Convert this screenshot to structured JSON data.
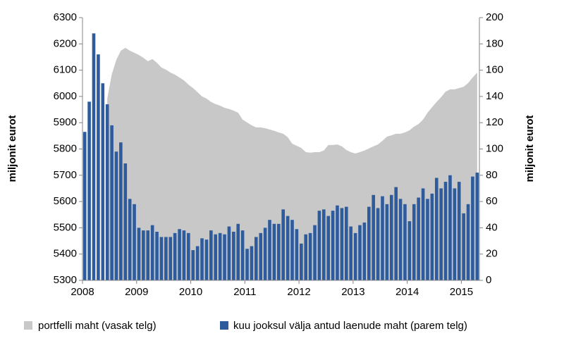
{
  "chart_data": {
    "type": "area_bar",
    "x": [
      2008.042,
      2008.125,
      2008.208,
      2008.292,
      2008.375,
      2008.458,
      2008.542,
      2008.625,
      2008.708,
      2008.792,
      2008.875,
      2008.958,
      2009.042,
      2009.125,
      2009.208,
      2009.292,
      2009.375,
      2009.458,
      2009.542,
      2009.625,
      2009.708,
      2009.792,
      2009.875,
      2009.958,
      2010.042,
      2010.125,
      2010.208,
      2010.292,
      2010.375,
      2010.458,
      2010.542,
      2010.625,
      2010.708,
      2010.792,
      2010.875,
      2010.958,
      2011.042,
      2011.125,
      2011.208,
      2011.292,
      2011.375,
      2011.458,
      2011.542,
      2011.625,
      2011.708,
      2011.792,
      2011.875,
      2011.958,
      2012.042,
      2012.125,
      2012.208,
      2012.292,
      2012.375,
      2012.458,
      2012.542,
      2012.625,
      2012.708,
      2012.792,
      2012.875,
      2012.958,
      2013.042,
      2013.125,
      2013.208,
      2013.292,
      2013.375,
      2013.458,
      2013.542,
      2013.625,
      2013.708,
      2013.792,
      2013.875,
      2013.958,
      2014.042,
      2014.125,
      2014.208,
      2014.292,
      2014.375,
      2014.458,
      2014.542,
      2014.625,
      2014.708,
      2014.792,
      2014.875,
      2014.958,
      2015.042,
      2015.125,
      2015.208,
      2015.292
    ],
    "xlim": [
      2008,
      2015.333
    ],
    "xticks": [
      2008,
      2009,
      2010,
      2011,
      2012,
      2013,
      2014,
      2015
    ],
    "ylim": [
      5300,
      6300
    ],
    "yticks": [
      5300,
      5400,
      5500,
      5600,
      5700,
      5800,
      5900,
      6000,
      6100,
      6200,
      6300
    ],
    "y2lim": [
      0,
      200
    ],
    "y2ticks": [
      0,
      20,
      40,
      60,
      80,
      100,
      120,
      140,
      160,
      180,
      200
    ],
    "ylabel": "miljonit eurot",
    "y2label": "miljonit eurot",
    "series": [
      {
        "name": "portfelli maht (vasak telg)",
        "color": "#c8c8c8",
        "axis": "y",
        "values": [
          null,
          null,
          null,
          null,
          null,
          5992,
          6085,
          6139,
          6174,
          6185,
          6174,
          6166,
          6158,
          6147,
          6134,
          6142,
          6128,
          6110,
          6102,
          6091,
          6083,
          6072,
          6061,
          6045,
          6032,
          6016,
          6000,
          5992,
          5979,
          5971,
          5965,
          5957,
          5952,
          5946,
          5938,
          5912,
          5901,
          5890,
          5882,
          5882,
          5879,
          5874,
          5869,
          5863,
          5858,
          5845,
          5820,
          5812,
          5804,
          5788,
          5786,
          5788,
          5788,
          5794,
          5815,
          5815,
          5817,
          5810,
          5796,
          5788,
          5783,
          5788,
          5794,
          5802,
          5810,
          5817,
          5831,
          5847,
          5852,
          5858,
          5858,
          5863,
          5871,
          5885,
          5895,
          5912,
          5938,
          5959,
          5979,
          5997,
          6018,
          6027,
          6027,
          6032,
          6037,
          6051,
          6072,
          6091
        ]
      },
      {
        "name": "kuu jooksul välja antud laenude maht (parem telg)",
        "color": "#2e5b9c",
        "axis": "y2",
        "values": [
          113,
          136,
          188,
          172,
          150,
          134,
          118,
          98,
          105,
          89,
          62,
          58,
          40,
          38,
          38,
          42,
          37,
          33,
          33,
          33,
          36,
          39,
          38,
          36,
          23,
          26,
          32,
          31,
          38,
          35,
          36,
          35,
          41,
          37,
          43,
          38,
          24,
          26,
          33,
          36,
          40,
          46,
          43,
          43,
          54,
          49,
          46,
          39,
          28,
          35,
          36,
          42,
          53,
          54,
          49,
          53,
          57,
          55,
          56,
          41,
          36,
          42,
          44,
          56,
          65,
          55,
          64,
          58,
          65,
          71,
          62,
          58,
          45,
          58,
          63,
          70,
          62,
          66,
          78,
          70,
          75,
          80,
          70,
          75,
          51,
          58,
          79,
          82
        ]
      }
    ]
  }
}
